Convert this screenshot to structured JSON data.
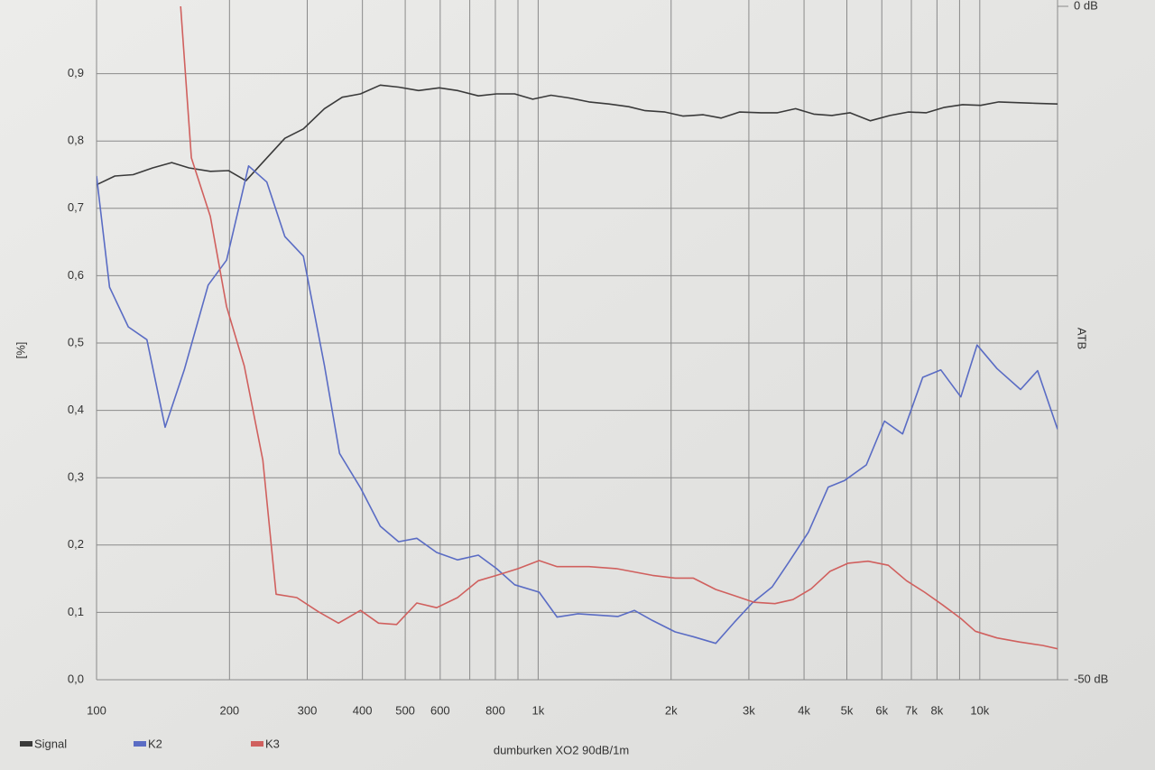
{
  "chart_data": {
    "type": "line",
    "log_x": true,
    "grid": true,
    "ylabel": "[%]",
    "y2label": "ATB",
    "caption": "dumburken XO2 90dB/1m",
    "xlim": [
      100,
      15000
    ],
    "ylim": [
      0,
      1
    ],
    "y2lim": [
      -50,
      0
    ],
    "xticks": [
      100,
      200,
      300,
      400,
      500,
      600,
      800,
      {
        "value": 1000,
        "label": "1k"
      },
      {
        "value": 2000,
        "label": "2k"
      },
      {
        "value": 3000,
        "label": "3k"
      },
      {
        "value": 4000,
        "label": "4k"
      },
      {
        "value": 5000,
        "label": "5k"
      },
      {
        "value": 6000,
        "label": "6k"
      },
      {
        "value": 7000,
        "label": "7k"
      },
      {
        "value": 8000,
        "label": "8k"
      },
      {
        "value": 10000,
        "label": "10k"
      }
    ],
    "xticks_minor": [
      700,
      900,
      9000
    ],
    "yticks": [
      {
        "value": 0,
        "label": "0,0"
      },
      {
        "value": 0.1,
        "label": "0,1"
      },
      {
        "value": 0.2,
        "label": "0,2"
      },
      {
        "value": 0.3,
        "label": "0,3"
      },
      {
        "value": 0.4,
        "label": "0,4"
      },
      {
        "value": 0.5,
        "label": "0,5"
      },
      {
        "value": 0.6,
        "label": "0,6"
      },
      {
        "value": 0.7,
        "label": "0,7"
      },
      {
        "value": 0.8,
        "label": "0,8"
      },
      {
        "value": 0.9,
        "label": "0,9"
      }
    ],
    "y2ticks": [
      {
        "value": -50,
        "label": "-50 dB"
      },
      {
        "value": 0,
        "label": "0 dB"
      }
    ],
    "series": [
      {
        "name": "Signal",
        "color": "#3a3a3a",
        "x": [
          100,
          110,
          121,
          134,
          148,
          162,
          181,
          199,
          218,
          240,
          267,
          294,
          328,
          360,
          396,
          439,
          483,
          536,
          597,
          657,
          732,
          805,
          885,
          972,
          1069,
          1175,
          1303,
          1446,
          1604,
          1747,
          1938,
          2130,
          2364,
          2598,
          2856,
          3199,
          3483,
          3828,
          4207,
          4624,
          5082,
          5649,
          6268,
          6887,
          7569,
          8318,
          9142,
          10046,
          11041,
          12133,
          13335,
          15000
        ],
        "values": [
          0.735,
          0.748,
          0.75,
          0.76,
          0.768,
          0.76,
          0.755,
          0.756,
          0.741,
          0.771,
          0.804,
          0.818,
          0.848,
          0.865,
          0.87,
          0.883,
          0.88,
          0.875,
          0.879,
          0.875,
          0.867,
          0.87,
          0.87,
          0.862,
          0.868,
          0.864,
          0.858,
          0.855,
          0.851,
          0.845,
          0.843,
          0.837,
          0.839,
          0.834,
          0.843,
          0.842,
          0.842,
          0.848,
          0.84,
          0.838,
          0.842,
          0.83,
          0.838,
          0.843,
          0.842,
          0.85,
          0.854,
          0.853,
          0.858,
          0.857,
          0.856,
          0.855
        ]
      },
      {
        "name": "K2",
        "color": "#5a6cc4",
        "x": [
          100,
          107,
          118,
          130,
          143,
          158,
          179,
          197,
          221,
          243,
          267,
          294,
          328,
          355,
          396,
          439,
          483,
          531,
          589,
          657,
          732,
          805,
          885,
          1005,
          1104,
          1231,
          1517,
          1651,
          1815,
          2042,
          2244,
          2524,
          2778,
          3053,
          3388,
          3690,
          4093,
          4539,
          4943,
          5536,
          6084,
          6687,
          7428,
          8163,
          9057,
          9860,
          10940,
          12370,
          13520,
          15000
        ],
        "values": [
          0.748,
          0.583,
          0.524,
          0.505,
          0.375,
          0.46,
          0.586,
          0.623,
          0.763,
          0.739,
          0.658,
          0.629,
          0.467,
          0.336,
          0.285,
          0.228,
          0.205,
          0.21,
          0.189,
          0.178,
          0.185,
          0.165,
          0.141,
          0.13,
          0.093,
          0.098,
          0.094,
          0.103,
          0.088,
          0.071,
          0.064,
          0.054,
          0.085,
          0.114,
          0.138,
          0.174,
          0.219,
          0.286,
          0.296,
          0.319,
          0.384,
          0.365,
          0.449,
          0.46,
          0.42,
          0.497,
          0.462,
          0.431,
          0.459,
          0.372
        ]
      },
      {
        "name": "K3",
        "color": "#d0605e",
        "x": [
          155,
          164,
          181,
          197,
          216,
          238,
          255,
          284,
          318,
          353,
          396,
          435,
          478,
          531,
          589,
          657,
          732,
          805,
          901,
          1005,
          1104,
          1303,
          1503,
          1651,
          1815,
          2042,
          2244,
          2524,
          2778,
          3083,
          3436,
          3776,
          4150,
          4581,
          5035,
          5585,
          6205,
          6823,
          7499,
          8241,
          9057,
          9772,
          10940,
          12300,
          13870,
          15000
        ],
        "values": [
          1.0,
          0.775,
          0.688,
          0.554,
          0.466,
          0.326,
          0.127,
          0.122,
          0.101,
          0.084,
          0.103,
          0.084,
          0.082,
          0.114,
          0.107,
          0.122,
          0.147,
          0.155,
          0.165,
          0.177,
          0.168,
          0.168,
          0.165,
          0.16,
          0.155,
          0.151,
          0.151,
          0.134,
          0.125,
          0.115,
          0.113,
          0.119,
          0.135,
          0.161,
          0.173,
          0.176,
          0.17,
          0.147,
          0.13,
          0.111,
          0.091,
          0.072,
          0.062,
          0.056,
          0.051,
          0.046
        ]
      }
    ]
  }
}
